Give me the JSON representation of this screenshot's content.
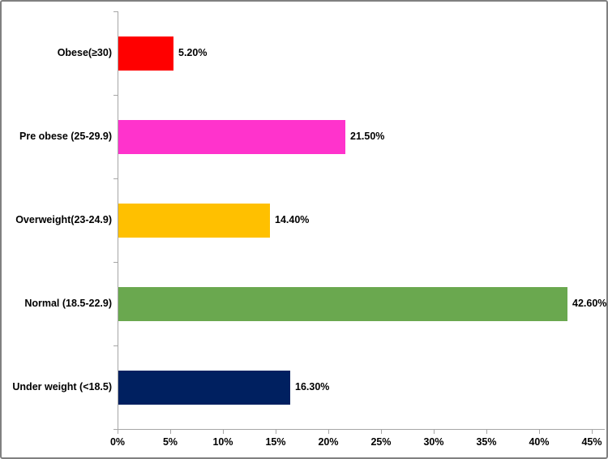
{
  "chart_data": {
    "type": "bar",
    "orientation": "horizontal",
    "title": "",
    "xlabel": "",
    "ylabel": "",
    "grid": false,
    "legend": "none",
    "xlim": [
      0,
      45
    ],
    "x_tick_labels": [
      "0%",
      "5%",
      "10%",
      "15%",
      "20%",
      "25%",
      "30%",
      "35%",
      "40%",
      "45%"
    ],
    "x_tick_values": [
      0,
      5,
      10,
      15,
      20,
      25,
      30,
      35,
      40,
      45
    ],
    "categories_top_to_bottom": [
      "Obese(≥30)",
      "Pre obese (25-29.9)",
      "Overweight(23-24.9)",
      "Normal (18.5-22.9)",
      "Under weight (<18.5)"
    ],
    "values": [
      5.2,
      21.5,
      14.4,
      42.6,
      16.3
    ],
    "data_labels": [
      "5.20%",
      "21.50%",
      "14.40%",
      "42.60%",
      "16.30%"
    ],
    "bar_colors": [
      "#ff0000",
      "#ff33cc",
      "#ffc000",
      "#6aa84f",
      "#002060"
    ],
    "axis_color": "#a6a6a6",
    "label_color": "#000000",
    "frame_border_color": "#808080"
  }
}
